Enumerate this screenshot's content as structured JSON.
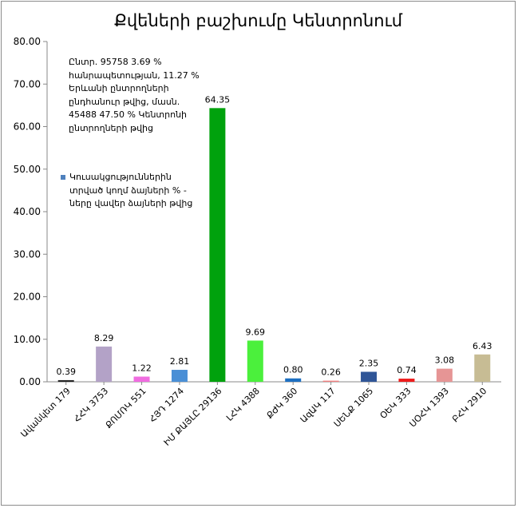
{
  "chart_data": {
    "type": "bar",
    "title": "Քվեների բաշխումը Կենտրոնում",
    "categories": [
      "Ավանկետ 179",
      "ՀՀԿ 3753",
      "ՔՈՄՌԿ 551",
      "ՀՅԴ 1274",
      "ԻՄ ՔԱՅԼԸ 29136",
      "ԼՀԿ 4388",
      "ՔԺԿ 360",
      "ԱզԱԿ 117",
      "ՍԵՆՔ 1065",
      "ՕԵԿ 333",
      "ՍՕՀԿ 1393",
      "ԲՀԿ 2910"
    ],
    "values": [
      0.39,
      8.29,
      1.22,
      2.81,
      64.35,
      9.69,
      0.8,
      0.26,
      2.35,
      0.74,
      3.08,
      6.43
    ],
    "value_labels": [
      "0.39",
      "8.29",
      "1.22",
      "2.81",
      "64.35",
      "9.69",
      "0.80",
      "0.26",
      "2.35",
      "0.74",
      "3.08",
      "6.43"
    ],
    "colors": [
      "#262626",
      "#b3a2c7",
      "#f06ce0",
      "#4a8fd6",
      "#00a20d",
      "#4bf03c",
      "#1d6fc2",
      "#f08080",
      "#2f5597",
      "#ee1c1c",
      "#e69595",
      "#c7bc94"
    ],
    "ylim": [
      0,
      80
    ],
    "yticks": [
      "0.00",
      "10.00",
      "20.00",
      "30.00",
      "40.00",
      "50.00",
      "60.00",
      "70.00",
      "80.00"
    ],
    "grid": false,
    "annotation": "Ընտր. 95758 3.69 % հանրապետության, 11.27 % Երևանի ընտրողների ընդհանուր թվից, մասն.  45488 47.50 % Կենտրոնի ընտրողների թվից",
    "legend": [
      {
        "label": "Կուսակցություններին տրված կողմ ձայների % - ները վավեր ձայների թվից",
        "color": "#4f81bd"
      }
    ],
    "legend_position": "top-left"
  }
}
